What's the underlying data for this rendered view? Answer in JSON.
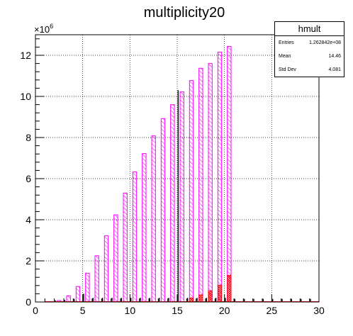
{
  "chart_data": {
    "type": "bar",
    "title": "multiplicity20",
    "xlabel": "",
    "ylabel": "",
    "y_exponent_label": "×10",
    "y_exponent_power": "6",
    "xlim": [
      0,
      30
    ],
    "ylim": [
      0,
      13.0
    ],
    "grid": true,
    "x_ticks": [
      0,
      5,
      10,
      15,
      20,
      25,
      30
    ],
    "y_ticks": [
      0,
      2,
      4,
      6,
      8,
      10,
      12
    ],
    "bin_width": 1,
    "series": [
      {
        "color": "#ff00ff",
        "fill": "hatched",
        "x": [
          1,
          2,
          3,
          4,
          5,
          6,
          7,
          8,
          9,
          10,
          11,
          12,
          13,
          14,
          15,
          16,
          17,
          18,
          19,
          20
        ],
        "values": [
          0.02,
          0.07,
          0.3,
          0.75,
          1.4,
          2.25,
          3.22,
          4.24,
          5.3,
          6.33,
          7.22,
          8.08,
          8.92,
          9.6,
          10.22,
          10.77,
          11.37,
          11.6,
          12.15,
          12.43
        ]
      },
      {
        "color": "#ff0000",
        "fill": "crosshatched",
        "x": [
          16,
          17,
          18,
          19,
          20
        ],
        "values": [
          0.2,
          0.35,
          0.55,
          0.82,
          1.3
        ]
      },
      {
        "color": "#000000",
        "fill": "ticks",
        "x": [
          2,
          3,
          4,
          5,
          6,
          7,
          8,
          9,
          10,
          11,
          12,
          13,
          14,
          15,
          16,
          17,
          18,
          19,
          20,
          21,
          22,
          23,
          24,
          25,
          26,
          27,
          28,
          29
        ],
        "values": [
          0.08,
          0.1,
          0.15,
          0.4,
          0.2,
          0.2,
          0.2,
          0.2,
          0.2,
          0.2,
          0.2,
          0.2,
          0.2,
          10.3,
          0.2,
          0.2,
          0.2,
          0.2,
          0.2,
          0.15,
          0.15,
          0.15,
          0.15,
          0.15,
          0.15,
          0.15,
          0.15,
          0.15
        ]
      }
    ],
    "legend": "top-right"
  },
  "stats": {
    "title": "hmult",
    "rows": [
      {
        "label": "Entries",
        "value": "1.262842e+08"
      },
      {
        "label": "Mean",
        "value": "14.46"
      },
      {
        "label": "Std Dev",
        "value": "4.081"
      }
    ]
  }
}
